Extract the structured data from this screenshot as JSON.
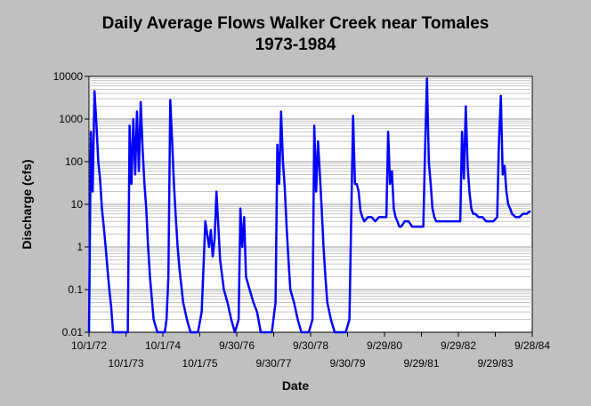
{
  "chart_data": {
    "type": "line",
    "title": "Daily Average Flows Walker Creek near Tomales",
    "subtitle": "1973-1984",
    "xlabel": "Date",
    "ylabel": "Discharge (cfs)",
    "yscale": "log",
    "ylim": [
      0.01,
      10000
    ],
    "y_ticks": [
      "10000",
      "1000",
      "100",
      "10",
      "1",
      "0.1",
      "0.01"
    ],
    "x_ticks_top": [
      "10/1/72",
      "10/1/74",
      "9/30/76",
      "9/30/78",
      "9/29/80",
      "9/29/82",
      "9/28/84"
    ],
    "x_ticks_bottom": [
      "10/1/73",
      "10/1/75",
      "9/30/77",
      "9/30/79",
      "9/29/81",
      "9/29/83"
    ],
    "grid": "horizontal",
    "series_color": "#0000ff",
    "series": [
      {
        "x": [
          1972.75,
          1972.8,
          1972.85,
          1972.9,
          1972.95,
          1973.0,
          1973.05,
          1973.1,
          1973.15,
          1973.2,
          1973.25,
          1973.3,
          1973.35,
          1973.4,
          1973.5,
          1973.6,
          1973.7,
          1973.8,
          1973.85,
          1973.9,
          1973.95,
          1974.0,
          1974.05,
          1974.1,
          1974.15,
          1974.2,
          1974.25,
          1974.3,
          1974.35,
          1974.4,
          1974.5,
          1974.6,
          1974.7,
          1974.8,
          1974.85,
          1974.9,
          1974.95,
          1975.0,
          1975.05,
          1975.1,
          1975.15,
          1975.2,
          1975.3,
          1975.4,
          1975.5,
          1975.6,
          1975.7,
          1975.8,
          1975.9,
          1976.0,
          1976.05,
          1976.1,
          1976.15,
          1976.2,
          1976.3,
          1976.4,
          1976.5,
          1976.6,
          1976.7,
          1976.8,
          1976.85,
          1976.9,
          1976.95,
          1977.0,
          1977.1,
          1977.2,
          1977.3,
          1977.4,
          1977.5,
          1977.6,
          1977.7,
          1977.8,
          1977.85,
          1977.9,
          1977.95,
          1978.0,
          1978.05,
          1978.1,
          1978.15,
          1978.2,
          1978.3,
          1978.4,
          1978.5,
          1978.6,
          1978.7,
          1978.8,
          1978.85,
          1978.9,
          1978.95,
          1979.0,
          1979.05,
          1979.1,
          1979.15,
          1979.2,
          1979.3,
          1979.4,
          1979.5,
          1979.6,
          1979.7,
          1979.8,
          1979.85,
          1979.9,
          1979.95,
          1980.0,
          1980.05,
          1980.1,
          1980.15,
          1980.2,
          1980.3,
          1980.4,
          1980.5,
          1980.6,
          1980.7,
          1980.8,
          1980.85,
          1980.9,
          1980.95,
          1981.0,
          1981.05,
          1981.1,
          1981.15,
          1981.2,
          1981.3,
          1981.4,
          1981.5,
          1981.6,
          1981.7,
          1981.8,
          1981.85,
          1981.9,
          1981.95,
          1982.0,
          1982.05,
          1982.1,
          1982.15,
          1982.2,
          1982.3,
          1982.4,
          1982.5,
          1982.6,
          1982.7,
          1982.8,
          1982.85,
          1982.9,
          1982.95,
          1983.0,
          1983.05,
          1983.1,
          1983.15,
          1983.2,
          1983.3,
          1983.4,
          1983.5,
          1983.6,
          1983.7,
          1983.8,
          1983.85,
          1983.9,
          1983.95,
          1984.0,
          1984.05,
          1984.1,
          1984.15,
          1984.2,
          1984.3,
          1984.4,
          1984.5,
          1984.6,
          1984.7
        ],
        "y": [
          0.01,
          500,
          20,
          4500,
          800,
          100,
          40,
          8,
          3,
          1,
          0.3,
          0.1,
          0.04,
          0.01,
          0.01,
          0.01,
          0.01,
          0.01,
          700,
          30,
          1000,
          50,
          1500,
          60,
          2500,
          200,
          30,
          8,
          1,
          0.2,
          0.02,
          0.01,
          0.01,
          0.01,
          0.02,
          0.2,
          2800,
          300,
          30,
          5,
          1,
          0.3,
          0.05,
          0.02,
          0.01,
          0.01,
          0.01,
          0.03,
          4,
          1,
          2.5,
          0.6,
          1.5,
          20,
          0.5,
          0.1,
          0.05,
          0.02,
          0.01,
          0.02,
          8,
          1,
          5,
          0.2,
          0.1,
          0.05,
          0.03,
          0.01,
          0.01,
          0.01,
          0.01,
          0.05,
          250,
          30,
          1500,
          100,
          25,
          3,
          0.5,
          0.1,
          0.05,
          0.02,
          0.01,
          0.01,
          0.01,
          0.02,
          700,
          20,
          300,
          50,
          8,
          1,
          0.2,
          0.05,
          0.02,
          0.01,
          0.01,
          0.01,
          0.01,
          0.02,
          5,
          1200,
          30,
          30,
          20,
          7,
          5,
          4,
          5,
          5,
          4,
          5,
          5,
          5,
          500,
          30,
          60,
          8,
          5,
          4,
          3,
          3,
          4,
          4,
          3,
          3,
          3,
          3,
          200,
          9000,
          100,
          30,
          8,
          5,
          4,
          4,
          4,
          4,
          4,
          4,
          4,
          4,
          500,
          40,
          2000,
          80,
          20,
          8,
          6,
          6,
          5,
          5,
          4,
          4,
          4,
          5,
          300,
          3500,
          50,
          80,
          20,
          10,
          8,
          6,
          5,
          5,
          6,
          6,
          7
        ]
      }
    ]
  }
}
